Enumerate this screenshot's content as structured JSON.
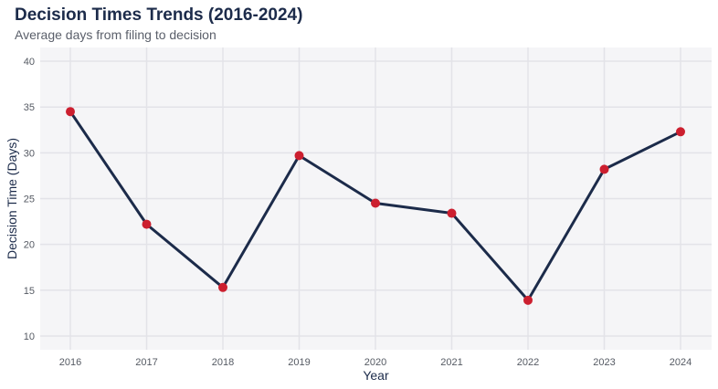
{
  "title": "Decision Times Trends (2016-2024)",
  "subtitle": "Average days from filing to decision",
  "colors": {
    "panel_background": "#f5f5f7",
    "grid": "#e3e3e8",
    "line": "#1c2b4a",
    "marker": "#cc1f2f"
  },
  "chart_data": {
    "type": "line",
    "title": "Decision Times Trends (2016-2024)",
    "subtitle": "Average days from filing to decision",
    "xlabel": "Year",
    "ylabel": "Decision Time (Days)",
    "categories": [
      "2016",
      "2017",
      "2018",
      "2019",
      "2020",
      "2021",
      "2022",
      "2023",
      "2024"
    ],
    "series": [
      {
        "values": [
          34.5,
          22.2,
          15.3,
          29.7,
          24.5,
          23.4,
          13.9,
          28.2,
          32.3
        ]
      }
    ],
    "ylim": [
      8.5,
      41.5
    ],
    "yticks": [
      10,
      15,
      20,
      25,
      30,
      35,
      40
    ],
    "grid": true,
    "legend": "none"
  }
}
